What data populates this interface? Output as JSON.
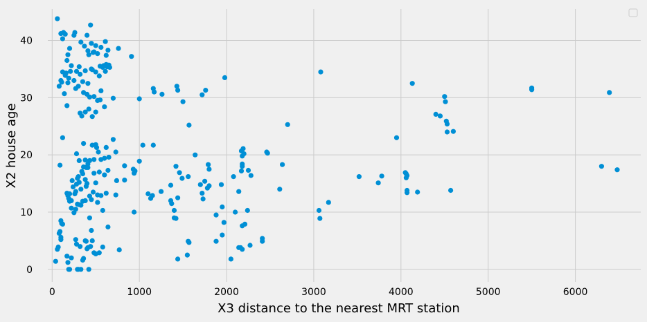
{
  "colors": {
    "background": "#f0f0f0",
    "grid": "#cbcbcb",
    "series": "#008fd5",
    "text": "#000000"
  },
  "chart_data": {
    "type": "scatter",
    "title": "",
    "xlabel": "X3 distance to the nearest MRT station",
    "ylabel": "X2 house age",
    "xlim": [
      -50,
      6750
    ],
    "ylim": [
      -2.2,
      45.5
    ],
    "xticks": [
      0,
      1000,
      2000,
      3000,
      4000,
      5000,
      6000
    ],
    "yticks": [
      0,
      10,
      20,
      30,
      40
    ],
    "grid": true,
    "legend": {
      "placement": "top-right",
      "entries": []
    },
    "series": [
      {
        "points": [
          [
            60,
            43.8
          ],
          [
            100,
            41.2
          ],
          [
            120,
            40.3
          ],
          [
            130,
            41.4
          ],
          [
            150,
            41.1
          ],
          [
            170,
            36.5
          ],
          [
            180,
            37.5
          ],
          [
            200,
            38.6
          ],
          [
            250,
            40.9
          ],
          [
            260,
            41.4
          ],
          [
            330,
            39.7
          ],
          [
            400,
            40.9
          ],
          [
            410,
            38.2
          ],
          [
            440,
            42.7
          ],
          [
            450,
            39.5
          ],
          [
            480,
            38.0
          ],
          [
            500,
            39.1
          ],
          [
            520,
            37.7
          ],
          [
            550,
            35.5
          ],
          [
            560,
            38.8
          ],
          [
            590,
            35.6
          ],
          [
            610,
            39.8
          ],
          [
            620,
            37.4
          ],
          [
            640,
            38.3
          ],
          [
            760,
            38.6
          ],
          [
            910,
            37.2
          ],
          [
            420,
            37.5
          ],
          [
            470,
            37.9
          ],
          [
            370,
            39.0
          ],
          [
            80,
            32.0
          ],
          [
            100,
            33.0
          ],
          [
            110,
            32.7
          ],
          [
            120,
            34.5
          ],
          [
            140,
            30.7
          ],
          [
            150,
            33.9
          ],
          [
            160,
            34.3
          ],
          [
            180,
            32.6
          ],
          [
            190,
            33.4
          ],
          [
            210,
            34.6
          ],
          [
            220,
            35.6
          ],
          [
            250,
            33.0
          ],
          [
            270,
            31.6
          ],
          [
            280,
            34.6
          ],
          [
            300,
            32.0
          ],
          [
            310,
            35.4
          ],
          [
            320,
            34.1
          ],
          [
            350,
            32.8
          ],
          [
            360,
            30.9
          ],
          [
            380,
            34.7
          ],
          [
            400,
            30.6
          ],
          [
            410,
            32.5
          ],
          [
            430,
            30.1
          ],
          [
            450,
            35.0
          ],
          [
            460,
            34.9
          ],
          [
            480,
            30.2
          ],
          [
            500,
            34.5
          ],
          [
            520,
            29.5
          ],
          [
            540,
            33.8
          ],
          [
            560,
            31.2
          ],
          [
            580,
            35.3
          ],
          [
            600,
            28.4
          ],
          [
            610,
            34.6
          ],
          [
            620,
            35.8
          ],
          [
            630,
            35.4
          ],
          [
            650,
            35.7
          ],
          [
            660,
            35.3
          ],
          [
            320,
            27.3
          ],
          [
            340,
            26.8
          ],
          [
            380,
            27.5
          ],
          [
            420,
            28.0
          ],
          [
            460,
            26.7
          ],
          [
            500,
            27.5
          ],
          [
            550,
            29.6
          ],
          [
            170,
            28.6
          ],
          [
            700,
            29.9
          ],
          [
            1000,
            29.8
          ],
          [
            1160,
            31.6
          ],
          [
            1170,
            31.0
          ],
          [
            1260,
            30.6
          ],
          [
            1430,
            32.0
          ],
          [
            1440,
            31.3
          ],
          [
            1500,
            29.3
          ],
          [
            1720,
            30.5
          ],
          [
            1760,
            31.3
          ],
          [
            1980,
            33.5
          ],
          [
            1570,
            25.2
          ],
          [
            3080,
            34.5
          ],
          [
            4130,
            32.5
          ],
          [
            4500,
            30.2
          ],
          [
            4510,
            29.3
          ],
          [
            4400,
            27.1
          ],
          [
            4450,
            26.8
          ],
          [
            4520,
            25.9
          ],
          [
            4530,
            25.4
          ],
          [
            4530,
            24.0
          ],
          [
            4600,
            24.1
          ],
          [
            3950,
            23.0
          ],
          [
            5500,
            31.7
          ],
          [
            5500,
            31.4
          ],
          [
            6390,
            30.9
          ],
          [
            2700,
            25.3
          ],
          [
            120,
            23.0
          ],
          [
            280,
            20.2
          ],
          [
            310,
            19.0
          ],
          [
            360,
            22.0
          ],
          [
            380,
            19.1
          ],
          [
            390,
            17.8
          ],
          [
            410,
            18.4
          ],
          [
            430,
            19.0
          ],
          [
            460,
            21.7
          ],
          [
            480,
            19.2
          ],
          [
            500,
            21.8
          ],
          [
            510,
            21.3
          ],
          [
            530,
            20.5
          ],
          [
            560,
            19.2
          ],
          [
            600,
            19.4
          ],
          [
            620,
            21.3
          ],
          [
            650,
            19.6
          ],
          [
            700,
            22.7
          ],
          [
            730,
            20.5
          ],
          [
            830,
            18.1
          ],
          [
            930,
            17.5
          ],
          [
            950,
            17.2
          ],
          [
            1000,
            18.9
          ],
          [
            1040,
            21.7
          ],
          [
            1160,
            21.7
          ],
          [
            1420,
            18.0
          ],
          [
            1460,
            16.9
          ],
          [
            1640,
            20.0
          ],
          [
            1790,
            18.3
          ],
          [
            1800,
            17.5
          ],
          [
            2170,
            20.7
          ],
          [
            2190,
            21.1
          ],
          [
            2200,
            20.2
          ],
          [
            2180,
            19.8
          ],
          [
            2180,
            18.4
          ],
          [
            2180,
            18.0
          ],
          [
            2170,
            17.2
          ],
          [
            2250,
            17.3
          ],
          [
            2280,
            16.4
          ],
          [
            2460,
            20.5
          ],
          [
            2470,
            20.3
          ],
          [
            2640,
            18.3
          ],
          [
            90,
            18.2
          ],
          [
            170,
            13.3
          ],
          [
            180,
            12.9
          ],
          [
            190,
            12.4
          ],
          [
            200,
            13.2
          ],
          [
            220,
            12.0
          ],
          [
            230,
            15.5
          ],
          [
            240,
            14.4
          ],
          [
            260,
            13.2
          ],
          [
            270,
            13.6
          ],
          [
            280,
            14.9
          ],
          [
            290,
            15.9
          ],
          [
            300,
            16.2
          ],
          [
            310,
            15.2
          ],
          [
            330,
            14.0
          ],
          [
            340,
            17.1
          ],
          [
            350,
            16.7
          ],
          [
            360,
            17.9
          ],
          [
            380,
            15.7
          ],
          [
            390,
            14.5
          ],
          [
            400,
            15.0
          ],
          [
            410,
            17.8
          ],
          [
            430,
            12.8
          ],
          [
            450,
            12.2
          ],
          [
            470,
            13.5
          ],
          [
            480,
            16.8
          ],
          [
            500,
            15.1
          ],
          [
            520,
            13.0
          ],
          [
            540,
            17.0
          ],
          [
            560,
            12.9
          ],
          [
            600,
            16.5
          ],
          [
            620,
            13.3
          ],
          [
            640,
            17.3
          ],
          [
            730,
            13.0
          ],
          [
            740,
            15.5
          ],
          [
            830,
            15.6
          ],
          [
            940,
            16.8
          ],
          [
            1100,
            13.2
          ],
          [
            1130,
            12.4
          ],
          [
            1150,
            12.9
          ],
          [
            1250,
            13.6
          ],
          [
            1360,
            14.7
          ],
          [
            1360,
            12.0
          ],
          [
            1370,
            11.5
          ],
          [
            1400,
            9.0
          ],
          [
            1420,
            8.9
          ],
          [
            1440,
            12.5
          ],
          [
            1490,
            15.9
          ],
          [
            1560,
            16.2
          ],
          [
            1700,
            14.8
          ],
          [
            1720,
            13.3
          ],
          [
            1730,
            12.3
          ],
          [
            1750,
            15.4
          ],
          [
            1780,
            14.2
          ],
          [
            1800,
            14.6
          ],
          [
            1940,
            14.8
          ],
          [
            2080,
            16.2
          ],
          [
            2100,
            10.0
          ],
          [
            2140,
            13.6
          ],
          [
            2240,
            10.3
          ],
          [
            2610,
            14.0
          ],
          [
            100,
            8.5
          ],
          [
            110,
            8.0
          ],
          [
            120,
            7.9
          ],
          [
            200,
            11.9
          ],
          [
            220,
            10.7
          ],
          [
            250,
            9.9
          ],
          [
            270,
            10.5
          ],
          [
            290,
            11.4
          ],
          [
            310,
            11.3
          ],
          [
            330,
            11.2
          ],
          [
            350,
            11.9
          ],
          [
            380,
            12.0
          ],
          [
            430,
            9.0
          ],
          [
            520,
            11.7
          ],
          [
            580,
            10.3
          ],
          [
            640,
            7.4
          ],
          [
            940,
            10.0
          ],
          [
            1400,
            10.3
          ],
          [
            1880,
            9.5
          ],
          [
            1950,
            10.9
          ],
          [
            1970,
            8.2
          ],
          [
            2180,
            7.6
          ],
          [
            2210,
            7.9
          ],
          [
            3060,
            10.3
          ],
          [
            3070,
            8.9
          ],
          [
            3170,
            11.7
          ],
          [
            40,
            1.4
          ],
          [
            60,
            3.5
          ],
          [
            70,
            3.9
          ],
          [
            80,
            6.3
          ],
          [
            90,
            6.6
          ],
          [
            100,
            5.6
          ],
          [
            100,
            5.2
          ],
          [
            170,
            2.3
          ],
          [
            180,
            1.2
          ],
          [
            190,
            0.0
          ],
          [
            200,
            0.0
          ],
          [
            220,
            2.0
          ],
          [
            270,
            5.2
          ],
          [
            280,
            4.4
          ],
          [
            290,
            0.0
          ],
          [
            300,
            0.0
          ],
          [
            320,
            4.0
          ],
          [
            330,
            0.0
          ],
          [
            350,
            1.6
          ],
          [
            360,
            1.9
          ],
          [
            380,
            5.0
          ],
          [
            390,
            4.9
          ],
          [
            400,
            3.6
          ],
          [
            410,
            3.8
          ],
          [
            420,
            0.0
          ],
          [
            440,
            4.0
          ],
          [
            450,
            6.8
          ],
          [
            460,
            5.0
          ],
          [
            480,
            2.9
          ],
          [
            500,
            2.7
          ],
          [
            540,
            2.9
          ],
          [
            580,
            3.9
          ],
          [
            770,
            3.4
          ],
          [
            1440,
            1.8
          ],
          [
            1550,
            2.5
          ],
          [
            1560,
            4.9
          ],
          [
            1570,
            4.7
          ],
          [
            1880,
            4.9
          ],
          [
            1950,
            6.0
          ],
          [
            2050,
            1.8
          ],
          [
            2140,
            3.8
          ],
          [
            2160,
            3.8
          ],
          [
            2180,
            3.5
          ],
          [
            2270,
            4.2
          ],
          [
            2410,
            4.9
          ],
          [
            2410,
            5.4
          ],
          [
            3520,
            16.2
          ],
          [
            3740,
            15.1
          ],
          [
            3780,
            16.3
          ],
          [
            4050,
            16.9
          ],
          [
            4060,
            16.7
          ],
          [
            4070,
            16.4
          ],
          [
            4060,
            16.0
          ],
          [
            4070,
            13.8
          ],
          [
            4070,
            13.4
          ],
          [
            4190,
            13.5
          ],
          [
            4570,
            13.8
          ],
          [
            6300,
            18.0
          ],
          [
            6480,
            17.4
          ]
        ]
      }
    ]
  }
}
